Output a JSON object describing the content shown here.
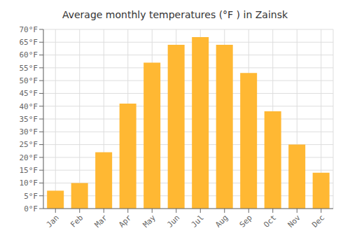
{
  "chart_data": {
    "type": "bar",
    "title": "Average monthly temperatures (°F ) in Zainsk",
    "categories": [
      "Jan",
      "Feb",
      "Mar",
      "Apr",
      "May",
      "Jun",
      "Jul",
      "Aug",
      "Sep",
      "Oct",
      "Nov",
      "Dec"
    ],
    "values": [
      7,
      10,
      22,
      41,
      57,
      64,
      67,
      64,
      53,
      38,
      25,
      14
    ],
    "color": "#FFB833",
    "ylim": [
      0,
      70
    ],
    "yticks": [
      {
        "value": 0,
        "label": "0°F"
      },
      {
        "value": 5,
        "label": "5°F"
      },
      {
        "value": 10,
        "label": "10°F"
      },
      {
        "value": 15,
        "label": "15°F"
      },
      {
        "value": 20,
        "label": "20°F"
      },
      {
        "value": 25,
        "label": "25°F"
      },
      {
        "value": 30,
        "label": "30°F"
      },
      {
        "value": 35,
        "label": "35°F"
      },
      {
        "value": 40,
        "label": "40°F"
      },
      {
        "value": 45,
        "label": "45°F"
      },
      {
        "value": 50,
        "label": "50°F"
      },
      {
        "value": 55,
        "label": "55°F"
      },
      {
        "value": 60,
        "label": "60°F"
      },
      {
        "value": 65,
        "label": "65°F"
      },
      {
        "value": 70,
        "label": "70°F"
      }
    ],
    "grid": true
  }
}
